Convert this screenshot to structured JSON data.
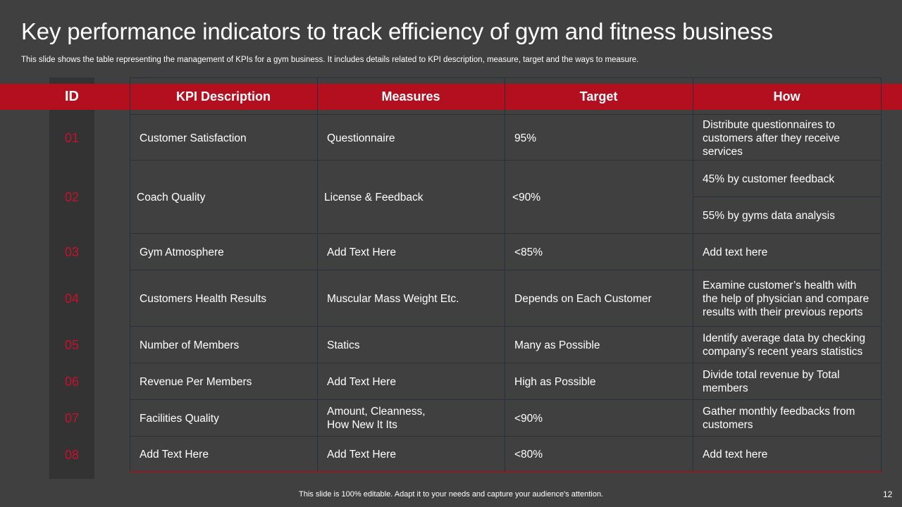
{
  "slide": {
    "title": "Key performance indicators to track efficiency of gym and fitness business",
    "subtitle": "This slide shows the table representing the management  of KPIs for a gym business. It includes details related to KPI description, measure, target and the ways to measure.",
    "footer": "This slide is 100% editable. Adapt it to your needs and capture your audience's attention.",
    "page_number": "12"
  },
  "table": {
    "headers": {
      "id": "ID",
      "kpi": "KPI Description",
      "measures": "Measures",
      "target": "Target",
      "how": "How"
    },
    "rows": [
      {
        "id": "01",
        "kpi": "Customer Satisfaction",
        "measures": "Questionnaire",
        "target": "95%",
        "how": "Distribute questionnaires to customers after they receive services"
      },
      {
        "id": "02",
        "kpi": "Coach Quality",
        "measures": "License & Feedback",
        "target": "<90%",
        "how_a": "45% by customer feedback",
        "how_b": "55% by gyms data analysis"
      },
      {
        "id": "03",
        "kpi": "Gym Atmosphere",
        "measures": "Add Text Here",
        "target": "<85%",
        "how": "Add text here"
      },
      {
        "id": "04",
        "kpi": "Customers Health Results",
        "measures": "Muscular Mass Weight Etc.",
        "target": "Depends on Each Customer",
        "how": "Examine customer’s health with the help of physician and compare results with their previous reports"
      },
      {
        "id": "05",
        "kpi": "Number of Members",
        "measures": "Statics",
        "target": "Many as Possible",
        "how": "Identify average data by checking company’s recent years statistics"
      },
      {
        "id": "06",
        "kpi": "Revenue  Per Members",
        "measures": "Add Text Here",
        "target": "High as Possible",
        "how": "Divide total revenue by  Total members"
      },
      {
        "id": "07",
        "kpi": "Facilities Quality",
        "measures": "Amount, Cleanness, How New It Its",
        "target": "<90%",
        "how": "Gather monthly  feedbacks from customers"
      },
      {
        "id": "08",
        "kpi": "Add Text Here",
        "measures": "Add Text Here",
        "target": "<80%",
        "how": "Add text here"
      }
    ]
  }
}
